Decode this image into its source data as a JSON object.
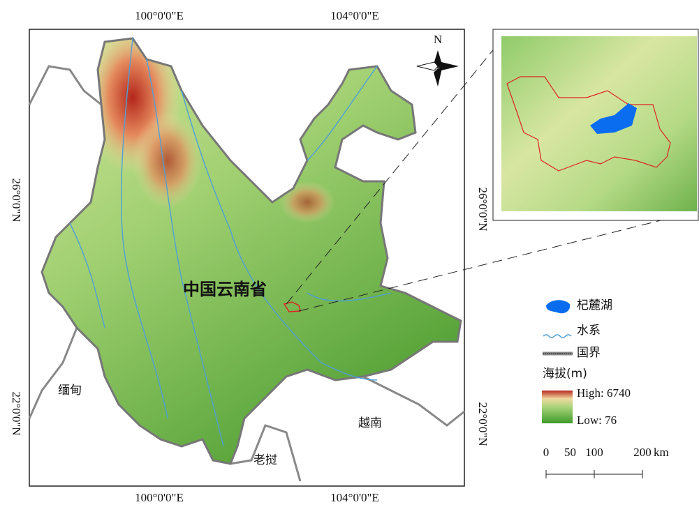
{
  "graticule": {
    "top": [
      "100°0'0\"E",
      "104°0'0\"E"
    ],
    "bottom": [
      "100°0'0\"E",
      "104°0'0\"E"
    ],
    "left": [
      "26°0'0\"N",
      "22°0'0\"N"
    ],
    "right": [
      "26°0'0\"N",
      "22°0'0\"N"
    ]
  },
  "north_arrow": "N",
  "map_labels": {
    "province": "中国云南省",
    "myanmar": "缅甸",
    "laos": "老挝",
    "vietnam": "越南"
  },
  "legend": {
    "lake": "杞麓湖",
    "river": "水系",
    "border": "国界",
    "elevation_title": "海拔(m)",
    "high": "High: 6740",
    "low": "Low: 76"
  },
  "scale_bar": {
    "ticks": [
      0,
      50,
      100,
      200
    ],
    "unit": "km"
  }
}
